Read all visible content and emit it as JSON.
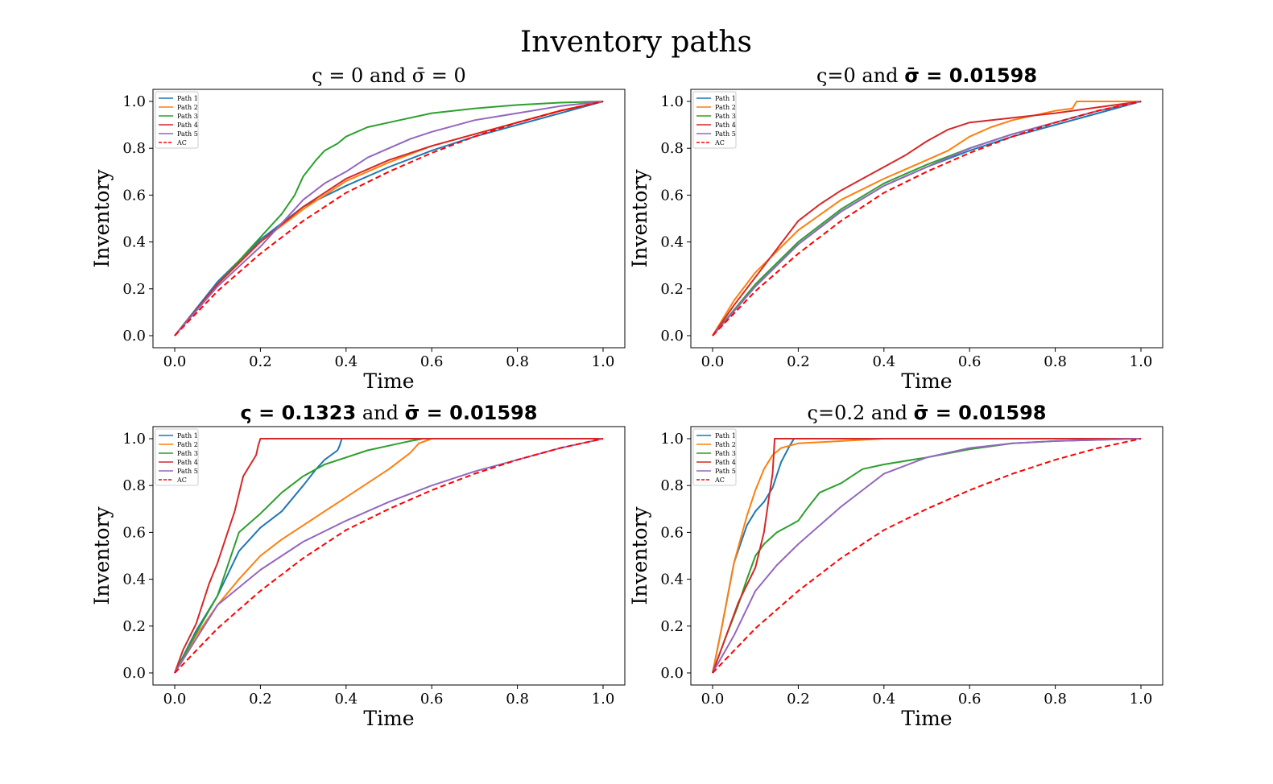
{
  "suptitle": "Inventory paths",
  "colors": {
    "Path 1": "#1f77b4",
    "Path 2": "#ff7f0e",
    "Path 3": "#2ca02c",
    "Path 4": "#d62728",
    "Path 5": "#9467bd",
    "AC": "#ff0000"
  },
  "chart_data": [
    {
      "type": "line",
      "title_parts": [
        [
          "ς = 0 and ",
          false
        ],
        [
          "σ̄ = 0",
          false
        ]
      ],
      "xlabel": "Time",
      "ylabel": "Inventory",
      "xlim": [
        0,
        1
      ],
      "ylim": [
        0,
        1
      ],
      "xticks": [
        "0.0",
        "0.2",
        "0.4",
        "0.6",
        "0.8",
        "1.0"
      ],
      "yticks": [
        "0.0",
        "0.2",
        "0.4",
        "0.6",
        "0.8",
        "1.0"
      ],
      "legend": "top-left",
      "grid": false,
      "series": [
        {
          "name": "Path 1",
          "x": [
            0,
            0.1,
            0.2,
            0.3,
            0.4,
            0.5,
            0.6,
            0.7,
            0.8,
            0.9,
            1.0
          ],
          "y": [
            0,
            0.23,
            0.41,
            0.55,
            0.64,
            0.72,
            0.79,
            0.85,
            0.9,
            0.95,
            1.0
          ]
        },
        {
          "name": "Path 2",
          "x": [
            0,
            0.1,
            0.2,
            0.3,
            0.4,
            0.5,
            0.6,
            0.7,
            0.8,
            0.9,
            1.0
          ],
          "y": [
            0,
            0.22,
            0.4,
            0.54,
            0.66,
            0.74,
            0.81,
            0.86,
            0.91,
            0.96,
            1.0
          ]
        },
        {
          "name": "Path 3",
          "x": [
            0,
            0.1,
            0.2,
            0.25,
            0.28,
            0.3,
            0.33,
            0.35,
            0.38,
            0.4,
            0.45,
            0.5,
            0.6,
            0.7,
            0.8,
            0.9,
            1.0
          ],
          "y": [
            0,
            0.22,
            0.42,
            0.52,
            0.6,
            0.68,
            0.75,
            0.79,
            0.82,
            0.85,
            0.89,
            0.91,
            0.95,
            0.97,
            0.985,
            0.995,
            1.0
          ]
        },
        {
          "name": "Path 4",
          "x": [
            0,
            0.1,
            0.2,
            0.3,
            0.4,
            0.5,
            0.6,
            0.7,
            0.8,
            0.9,
            1.0
          ],
          "y": [
            0,
            0.22,
            0.4,
            0.55,
            0.67,
            0.75,
            0.81,
            0.86,
            0.91,
            0.96,
            1.0
          ]
        },
        {
          "name": "Path 5",
          "x": [
            0,
            0.1,
            0.2,
            0.25,
            0.3,
            0.35,
            0.4,
            0.45,
            0.5,
            0.55,
            0.6,
            0.7,
            0.8,
            0.9,
            1.0
          ],
          "y": [
            0,
            0.21,
            0.38,
            0.48,
            0.58,
            0.65,
            0.7,
            0.76,
            0.8,
            0.84,
            0.87,
            0.92,
            0.95,
            0.98,
            1.0
          ]
        },
        {
          "name": "AC",
          "x": [
            0,
            0.1,
            0.2,
            0.3,
            0.4,
            0.5,
            0.6,
            0.7,
            0.8,
            0.9,
            1.0
          ],
          "y": [
            0,
            0.19,
            0.35,
            0.49,
            0.61,
            0.7,
            0.78,
            0.85,
            0.91,
            0.96,
            1.0
          ],
          "dashed": true
        }
      ]
    },
    {
      "type": "line",
      "title_parts": [
        [
          "ς=0 and ",
          false
        ],
        [
          "σ̄ = 0.01598",
          true
        ]
      ],
      "xlabel": "Time",
      "ylabel": "Inventory",
      "xlim": [
        0,
        1
      ],
      "ylim": [
        0,
        1
      ],
      "xticks": [
        "0.0",
        "0.2",
        "0.4",
        "0.6",
        "0.8",
        "1.0"
      ],
      "yticks": [
        "0.0",
        "0.2",
        "0.4",
        "0.6",
        "0.8",
        "1.0"
      ],
      "legend": "top-left",
      "grid": false,
      "series": [
        {
          "name": "Path 1",
          "x": [
            0,
            0.1,
            0.2,
            0.3,
            0.4,
            0.5,
            0.6,
            0.7,
            0.8,
            0.9,
            1.0
          ],
          "y": [
            0,
            0.21,
            0.39,
            0.53,
            0.64,
            0.72,
            0.79,
            0.85,
            0.9,
            0.95,
            1.0
          ]
        },
        {
          "name": "Path 2",
          "x": [
            0,
            0.05,
            0.1,
            0.2,
            0.3,
            0.4,
            0.5,
            0.55,
            0.6,
            0.65,
            0.7,
            0.8,
            0.84,
            0.85,
            1.0
          ],
          "y": [
            0,
            0.15,
            0.27,
            0.45,
            0.58,
            0.67,
            0.75,
            0.79,
            0.85,
            0.89,
            0.92,
            0.96,
            0.97,
            1.0,
            1.0
          ]
        },
        {
          "name": "Path 3",
          "x": [
            0,
            0.1,
            0.2,
            0.3,
            0.4,
            0.5,
            0.6,
            0.7,
            0.8,
            0.9,
            1.0
          ],
          "y": [
            0,
            0.22,
            0.4,
            0.54,
            0.65,
            0.73,
            0.8,
            0.86,
            0.91,
            0.96,
            1.0
          ]
        },
        {
          "name": "Path 4",
          "x": [
            0,
            0.05,
            0.1,
            0.15,
            0.2,
            0.25,
            0.3,
            0.35,
            0.4,
            0.45,
            0.5,
            0.55,
            0.6,
            0.7,
            0.8,
            0.9,
            1.0
          ],
          "y": [
            0,
            0.13,
            0.25,
            0.37,
            0.49,
            0.56,
            0.62,
            0.67,
            0.72,
            0.77,
            0.83,
            0.88,
            0.91,
            0.93,
            0.95,
            0.975,
            1.0
          ]
        },
        {
          "name": "Path 5",
          "x": [
            0,
            0.1,
            0.2,
            0.3,
            0.4,
            0.5,
            0.6,
            0.7,
            0.8,
            0.9,
            1.0
          ],
          "y": [
            0,
            0.21,
            0.39,
            0.53,
            0.64,
            0.72,
            0.8,
            0.86,
            0.91,
            0.96,
            1.0
          ]
        },
        {
          "name": "AC",
          "x": [
            0,
            0.1,
            0.2,
            0.3,
            0.4,
            0.5,
            0.6,
            0.7,
            0.8,
            0.9,
            1.0
          ],
          "y": [
            0,
            0.19,
            0.35,
            0.49,
            0.61,
            0.7,
            0.78,
            0.85,
            0.91,
            0.96,
            1.0
          ],
          "dashed": true
        }
      ]
    },
    {
      "type": "line",
      "title_parts": [
        [
          "ς = 0.1323",
          true
        ],
        [
          " and ",
          false
        ],
        [
          "σ̄ = 0.01598",
          true
        ]
      ],
      "xlabel": "Time",
      "ylabel": "Inventory",
      "xlim": [
        0,
        1
      ],
      "ylim": [
        0,
        1
      ],
      "xticks": [
        "0.0",
        "0.2",
        "0.4",
        "0.6",
        "0.8",
        "1.0"
      ],
      "yticks": [
        "0.0",
        "0.2",
        "0.4",
        "0.6",
        "0.8",
        "1.0"
      ],
      "legend": "top-left",
      "grid": false,
      "series": [
        {
          "name": "Path 1",
          "x": [
            0,
            0.05,
            0.1,
            0.15,
            0.2,
            0.25,
            0.3,
            0.33,
            0.35,
            0.38,
            0.385,
            0.39,
            1.0
          ],
          "y": [
            0,
            0.18,
            0.33,
            0.52,
            0.62,
            0.69,
            0.8,
            0.87,
            0.91,
            0.95,
            0.97,
            1.0,
            1.0
          ]
        },
        {
          "name": "Path 2",
          "x": [
            0,
            0.05,
            0.1,
            0.15,
            0.2,
            0.25,
            0.3,
            0.35,
            0.4,
            0.45,
            0.5,
            0.55,
            0.57,
            0.6,
            1.0
          ],
          "y": [
            0,
            0.16,
            0.29,
            0.4,
            0.5,
            0.57,
            0.63,
            0.69,
            0.75,
            0.81,
            0.87,
            0.94,
            0.98,
            1.0,
            1.0
          ]
        },
        {
          "name": "Path 3",
          "x": [
            0,
            0.05,
            0.1,
            0.15,
            0.2,
            0.25,
            0.3,
            0.35,
            0.4,
            0.45,
            0.5,
            0.55,
            0.58,
            0.6,
            1.0
          ],
          "y": [
            0,
            0.17,
            0.33,
            0.6,
            0.68,
            0.77,
            0.84,
            0.89,
            0.92,
            0.95,
            0.97,
            0.99,
            1.0,
            1.0,
            1.0
          ]
        },
        {
          "name": "Path 4",
          "x": [
            0,
            0.02,
            0.05,
            0.08,
            0.1,
            0.12,
            0.14,
            0.16,
            0.18,
            0.19,
            0.195,
            0.2,
            1.0
          ],
          "y": [
            0,
            0.1,
            0.21,
            0.38,
            0.47,
            0.58,
            0.69,
            0.84,
            0.9,
            0.93,
            0.97,
            1.0,
            1.0
          ]
        },
        {
          "name": "Path 5",
          "x": [
            0,
            0.1,
            0.2,
            0.3,
            0.4,
            0.5,
            0.6,
            0.7,
            0.8,
            0.9,
            1.0
          ],
          "y": [
            0,
            0.29,
            0.44,
            0.56,
            0.65,
            0.73,
            0.8,
            0.86,
            0.91,
            0.96,
            1.0
          ]
        },
        {
          "name": "AC",
          "x": [
            0,
            0.1,
            0.2,
            0.3,
            0.4,
            0.5,
            0.6,
            0.7,
            0.8,
            0.9,
            1.0
          ],
          "y": [
            0,
            0.19,
            0.35,
            0.49,
            0.61,
            0.7,
            0.78,
            0.85,
            0.91,
            0.96,
            1.0
          ],
          "dashed": true
        }
      ]
    },
    {
      "type": "line",
      "title_parts": [
        [
          "ς=0.2 and ",
          false
        ],
        [
          "σ̄ = 0.01598",
          true
        ]
      ],
      "xlabel": "Time",
      "ylabel": "Inventory",
      "xlim": [
        0,
        1
      ],
      "ylim": [
        0,
        1
      ],
      "xticks": [
        "0.0",
        "0.2",
        "0.4",
        "0.6",
        "0.8",
        "1.0"
      ],
      "yticks": [
        "0.0",
        "0.2",
        "0.4",
        "0.6",
        "0.8",
        "1.0"
      ],
      "legend": "top-left",
      "grid": false,
      "series": [
        {
          "name": "Path 1",
          "x": [
            0,
            0.02,
            0.05,
            0.08,
            0.1,
            0.12,
            0.14,
            0.16,
            0.18,
            0.19,
            1.0
          ],
          "y": [
            0,
            0.18,
            0.47,
            0.63,
            0.69,
            0.73,
            0.79,
            0.9,
            0.97,
            1.0,
            1.0
          ]
        },
        {
          "name": "Path 2",
          "x": [
            0,
            0.02,
            0.05,
            0.08,
            0.1,
            0.12,
            0.14,
            0.16,
            0.18,
            0.2,
            0.3,
            0.4,
            0.6,
            1.0
          ],
          "y": [
            0,
            0.18,
            0.47,
            0.67,
            0.78,
            0.87,
            0.93,
            0.96,
            0.97,
            0.98,
            0.99,
            1.0,
            1.0,
            1.0
          ]
        },
        {
          "name": "Path 3",
          "x": [
            0,
            0.03,
            0.06,
            0.08,
            0.1,
            0.12,
            0.15,
            0.18,
            0.2,
            0.22,
            0.25,
            0.3,
            0.35,
            0.4,
            0.5,
            0.6,
            0.7,
            0.8,
            1.0
          ],
          "y": [
            0,
            0.15,
            0.29,
            0.4,
            0.5,
            0.55,
            0.6,
            0.63,
            0.65,
            0.7,
            0.77,
            0.81,
            0.87,
            0.89,
            0.92,
            0.955,
            0.98,
            0.99,
            1.0
          ]
        },
        {
          "name": "Path 4",
          "x": [
            0,
            0.03,
            0.06,
            0.1,
            0.12,
            0.13,
            0.14,
            0.145,
            1.0
          ],
          "y": [
            0,
            0.15,
            0.3,
            0.45,
            0.6,
            0.73,
            0.85,
            1.0,
            1.0
          ]
        },
        {
          "name": "Path 5",
          "x": [
            0,
            0.05,
            0.1,
            0.15,
            0.2,
            0.25,
            0.3,
            0.35,
            0.4,
            0.5,
            0.6,
            0.7,
            0.8,
            0.9,
            1.0
          ],
          "y": [
            0,
            0.16,
            0.35,
            0.46,
            0.55,
            0.63,
            0.71,
            0.78,
            0.85,
            0.92,
            0.96,
            0.98,
            0.99,
            0.995,
            1.0
          ]
        },
        {
          "name": "AC",
          "x": [
            0,
            0.1,
            0.2,
            0.3,
            0.4,
            0.5,
            0.6,
            0.7,
            0.8,
            0.9,
            1.0
          ],
          "y": [
            0,
            0.19,
            0.35,
            0.49,
            0.61,
            0.7,
            0.78,
            0.85,
            0.91,
            0.96,
            1.0
          ],
          "dashed": true
        }
      ]
    }
  ]
}
